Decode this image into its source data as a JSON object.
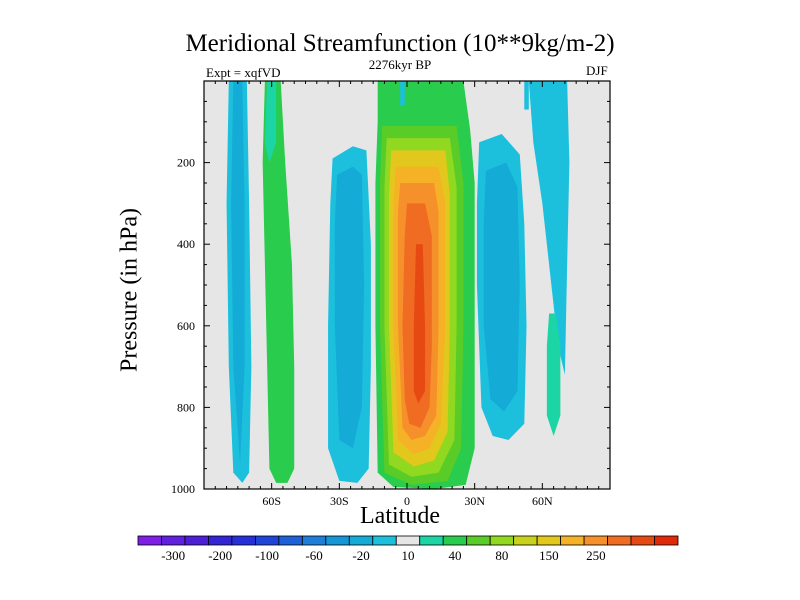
{
  "colors": {
    "background": "#ffffff",
    "plot_background": "#e6e6e6",
    "palette": [
      "#7f1fe6",
      "#5f20e0",
      "#4d20d6",
      "#3325d6",
      "#2530d8",
      "#1f45d8",
      "#1e60d8",
      "#1f7ed8",
      "#1496d7",
      "#14acd7",
      "#1cc0dd",
      "#e6e6e6",
      "#1bd6a4",
      "#29cc4c",
      "#5acc27",
      "#91d820",
      "#c8d21c",
      "#e2c81c",
      "#f5b226",
      "#f5902a",
      "#ef6c22",
      "#e64a12",
      "#e02a0a"
    ]
  },
  "chart_data": {
    "type": "heatmap",
    "title": "Meridional Streamfunction (10**9kg/m-2)",
    "subtitle": "2276kyr BP",
    "left_label": "Expt = xqfVD",
    "right_label": "DJF",
    "xlabel": "Latitude",
    "ylabel": "Pressure (in hPa)",
    "xlim": [
      -90,
      90
    ],
    "ylim": [
      1000,
      0
    ],
    "x_ticks": [
      {
        "value": -60,
        "label": "60S"
      },
      {
        "value": -30,
        "label": "30S"
      },
      {
        "value": 0,
        "label": "0"
      },
      {
        "value": 30,
        "label": "30N"
      },
      {
        "value": 60,
        "label": "60N"
      }
    ],
    "y_ticks": [
      {
        "value": 200,
        "label": "200"
      },
      {
        "value": 400,
        "label": "400"
      },
      {
        "value": 600,
        "label": "600"
      },
      {
        "value": 800,
        "label": "800"
      },
      {
        "value": 1000,
        "label": "1000"
      }
    ],
    "colorbar_labels": [
      "-300",
      "-200",
      "-100",
      "-60",
      "-20",
      "10",
      "40",
      "80",
      "150",
      "250"
    ],
    "features": [
      {
        "name": "southern-polar-negative-cell",
        "level": "-20",
        "lat_min": -80,
        "lat_max": -70,
        "p_top": 0,
        "p_bottom": 980
      },
      {
        "name": "southern-ferrel-positive-cell",
        "level": "40",
        "lat_min": -64,
        "lat_max": -50,
        "p_top": 0,
        "p_bottom": 980
      },
      {
        "name": "southern-subtropical-negative-cell",
        "level": "-20",
        "lat_min": -35,
        "lat_max": -17,
        "p_top": 150,
        "p_bottom": 980
      },
      {
        "name": "hadley-cell-positive",
        "level": "250",
        "lat_min": -14,
        "lat_max": 30,
        "p_top": 0,
        "p_bottom": 1000,
        "max_center_lat": 8,
        "max_center_p": 550
      },
      {
        "name": "northern-ferrel-negative-cell",
        "level": "-20",
        "lat_min": 31,
        "lat_max": 52,
        "p_top": 120,
        "p_bottom": 870
      },
      {
        "name": "northern-polar-positive-cell",
        "level": "10",
        "lat_min": 62,
        "lat_max": 68,
        "p_top": 570,
        "p_bottom": 870
      },
      {
        "name": "arctic-negative-cell",
        "level": "-20",
        "lat_min": 50,
        "lat_max": 72,
        "p_top": 0,
        "p_bottom": 720
      }
    ]
  }
}
